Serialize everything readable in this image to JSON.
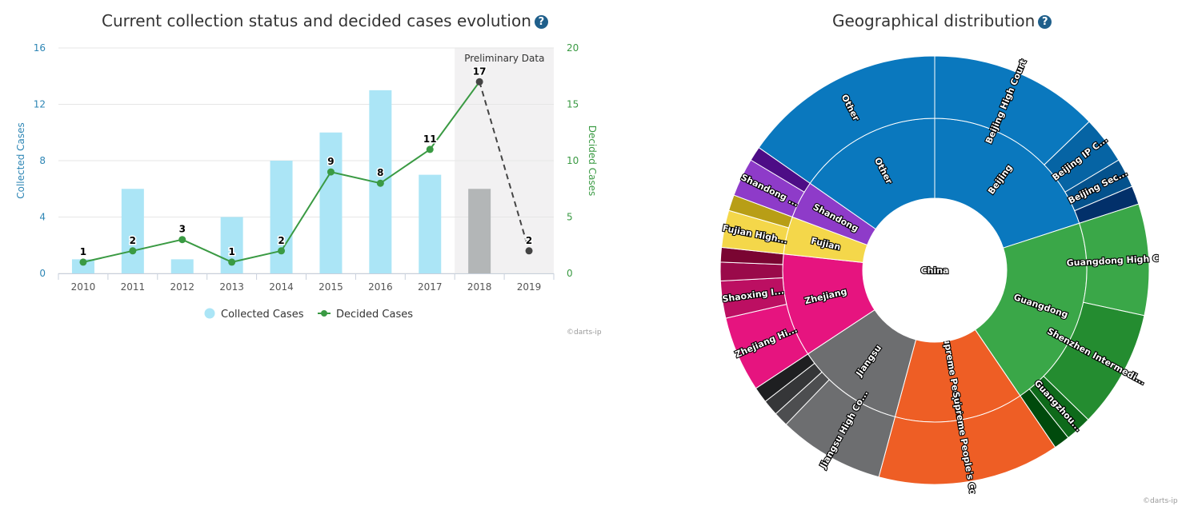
{
  "charts": {
    "bar_help": "?",
    "geo_help": "?",
    "credit_left": "©darts-ip",
    "credit_right": "©darts-ip"
  },
  "colors": {
    "collected": "#abe5f6",
    "collected_preliminary": "#b3b6b7",
    "decided": "#3a9a43",
    "preliminary_line": "#444444",
    "preliminary_band": "#f2f1f2",
    "left_axis": "#2e86b5",
    "right_axis": "#3a9a43"
  },
  "chart_data": [
    {
      "type": "bar",
      "title": "Current collection status and decided cases evolution",
      "categories": [
        "2010",
        "2011",
        "2012",
        "2013",
        "2014",
        "2015",
        "2016",
        "2017",
        "2018",
        "2019"
      ],
      "series": [
        {
          "name": "Collected Cases",
          "type": "bar",
          "axis": "left",
          "values": [
            1,
            6,
            1,
            4,
            8,
            10,
            13,
            7,
            6,
            0
          ]
        },
        {
          "name": "Decided Cases",
          "type": "line",
          "axis": "right",
          "values": [
            1,
            2,
            3,
            1,
            2,
            9,
            8,
            11,
            17,
            2
          ]
        }
      ],
      "ylabel": "Collected Cases",
      "ylabel_right": "Decided Cases",
      "ylim": [
        0,
        16
      ],
      "ylim_right": [
        0,
        20
      ],
      "yticks": [
        0,
        4,
        8,
        12,
        16
      ],
      "yticks_right": [
        0,
        5,
        10,
        15,
        20
      ],
      "preliminary_label": "Preliminary Data",
      "preliminary_categories": [
        "2018",
        "2019"
      ],
      "legend": [
        "Collected Cases",
        "Decided Cases"
      ],
      "legend_position": "bottom"
    },
    {
      "type": "sunburst",
      "title": "Geographical distribution",
      "center_label": "China",
      "units": "approximate share of total cases (%)",
      "provinces": [
        {
          "name": "Beijing",
          "value": 20,
          "color": "#0a78be",
          "children": [
            {
              "name": "Beijing High Court",
              "value": 12.8,
              "color": "#0a78be"
            },
            {
              "name": "Beijing IP C...",
              "value": 3.6,
              "color": "#0664a4"
            },
            {
              "name": "Beijing Sec...",
              "value": 2.2,
              "color": "#04528d"
            },
            {
              "name": "",
              "value": 1.4,
              "color": "#02306a"
            }
          ]
        },
        {
          "name": "Guangdong",
          "value": 20.5,
          "color": "#3aa748",
          "children": [
            {
              "name": "Guangdong High C...",
              "value": 8.4,
              "color": "#3aa748"
            },
            {
              "name": "Shenzhen Intermedi...",
              "value": 8.9,
              "color": "#248c30"
            },
            {
              "name": "Guangzhou...",
              "value": 2.0,
              "color": "#0e6a1a"
            },
            {
              "name": "",
              "value": 1.2,
              "color": "#004a0c"
            }
          ]
        },
        {
          "name": "Supreme People's...",
          "value": 13.7,
          "color": "#ee5e25",
          "children": [
            {
              "name": "Supreme People's Court",
              "value": 13.7,
              "color": "#ee5e25"
            }
          ]
        },
        {
          "name": "Jiangsu",
          "value": 11.5,
          "color": "#6d6e70",
          "children": [
            {
              "name": "Jiangsu High Co...",
              "value": 8.0,
              "color": "#6d6e70"
            },
            {
              "name": "",
              "value": 1.1,
              "color": "#4d4e50"
            },
            {
              "name": "",
              "value": 1.2,
              "color": "#353638"
            },
            {
              "name": "",
              "value": 1.2,
              "color": "#1e1f21"
            }
          ]
        },
        {
          "name": "Zhejiang",
          "value": 11.0,
          "color": "#e6147f",
          "children": [
            {
              "name": "Zhejiang Hi...",
              "value": 5.7,
              "color": "#e6147f"
            },
            {
              "name": "Shaoxing I...",
              "value": 2.8,
              "color": "#bc0f62"
            },
            {
              "name": "",
              "value": 1.4,
              "color": "#9a0a4a"
            },
            {
              "name": "",
              "value": 1.1,
              "color": "#7a0532"
            }
          ]
        },
        {
          "name": "Fujian",
          "value": 4.0,
          "color": "#f4d74a",
          "children": [
            {
              "name": "Fujian High...",
              "value": 2.8,
              "color": "#f4d74a"
            },
            {
              "name": "",
              "value": 1.2,
              "color": "#b89e16"
            }
          ]
        },
        {
          "name": "Shandong",
          "value": 4.0,
          "color": "#8e3bc9",
          "children": [
            {
              "name": "Shandong ...",
              "value": 2.9,
              "color": "#8e3bc9"
            },
            {
              "name": "",
              "value": 1.1,
              "color": "#4d0d86"
            }
          ]
        },
        {
          "name": "Other",
          "value": 15.3,
          "color": "#0a78be",
          "children": [
            {
              "name": "Other",
              "value": 15.3,
              "color": "#0a78be"
            }
          ]
        }
      ]
    }
  ]
}
